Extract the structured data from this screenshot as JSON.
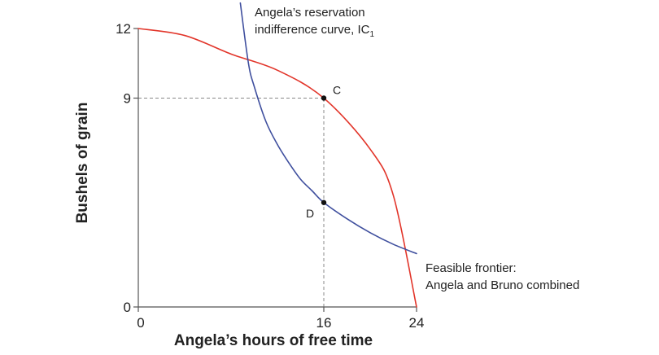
{
  "chart_data": {
    "type": "line",
    "xlabel": "Angela’s hours of free time",
    "ylabel": "Bushels of grain",
    "xlim": [
      0,
      24
    ],
    "ylim": [
      0,
      12
    ],
    "x_ticks": [
      0,
      16,
      24
    ],
    "y_ticks": [
      0,
      9,
      12
    ],
    "x_tick_labels": [
      "0",
      "16",
      "24"
    ],
    "y_tick_labels": [
      "0",
      "9",
      "12"
    ],
    "grid": false,
    "series": [
      {
        "key": "frontier",
        "color": "#e2352a",
        "x": [
          0,
          4,
          8,
          12,
          16,
          20,
          22,
          24
        ],
        "y": [
          12,
          11.7,
          10.9,
          10.2,
          9,
          6.8,
          4.8,
          0
        ]
      },
      {
        "key": "ic1",
        "color": "#3f4f9e",
        "x": [
          8.8,
          9.5,
          10,
          11,
          12,
          13,
          14,
          15,
          16,
          18,
          20,
          22,
          24
        ],
        "y": [
          13.1,
          10.5,
          9.5,
          8.0,
          7.0,
          6.2,
          5.5,
          5.0,
          4.5,
          3.8,
          3.2,
          2.7,
          2.3
        ]
      }
    ],
    "series_labels": {
      "frontier": [
        "Feasible frontier:",
        "Angela and Bruno combined"
      ],
      "ic1": [
        "Angela’s reservation",
        "indifference curve, IC"
      ],
      "ic1_subscript": "1"
    },
    "points": [
      {
        "label": "C",
        "x": 16,
        "y": 9
      },
      {
        "label": "D",
        "x": 16,
        "y": 4.5
      }
    ],
    "guides": [
      {
        "from": [
          0,
          9
        ],
        "to": [
          16,
          9
        ]
      },
      {
        "from": [
          16,
          0
        ],
        "to": [
          16,
          9
        ]
      }
    ]
  }
}
